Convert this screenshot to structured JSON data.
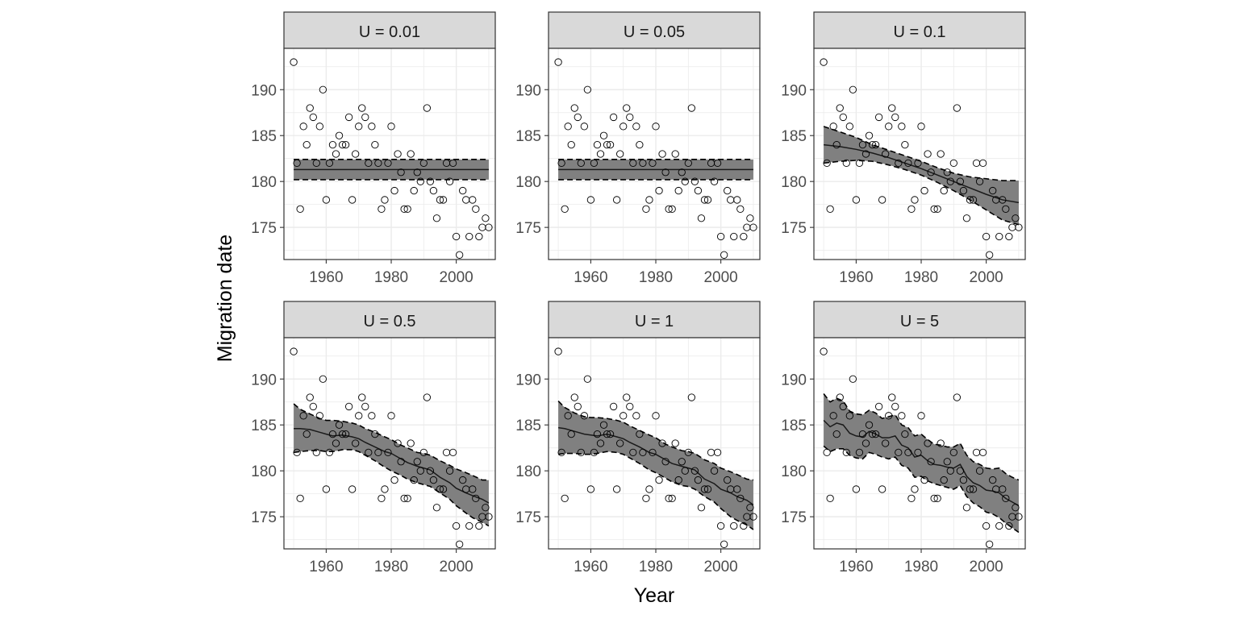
{
  "chart_data": {
    "type": "scatter",
    "xlabel": "Year",
    "ylabel": "Migration date",
    "xlim": [
      1947,
      2012
    ],
    "ylim": [
      171.5,
      194.5
    ],
    "x_ticks": [
      1960,
      1980,
      2000
    ],
    "y_ticks": [
      175,
      180,
      185,
      190
    ],
    "grid": true,
    "colors": {
      "points": "#000000",
      "band": "#808080",
      "strip_fill": "#d9d9d9",
      "grid": "#ebebeb",
      "border": "#333333"
    },
    "observations": {
      "x": [
        1950,
        1951,
        1952,
        1953,
        1954,
        1955,
        1956,
        1957,
        1958,
        1959,
        1960,
        1961,
        1962,
        1963,
        1964,
        1965,
        1966,
        1967,
        1968,
        1969,
        1970,
        1971,
        1972,
        1973,
        1974,
        1975,
        1976,
        1977,
        1978,
        1979,
        1980,
        1981,
        1982,
        1983,
        1984,
        1985,
        1986,
        1987,
        1988,
        1989,
        1990,
        1991,
        1992,
        1993,
        1994,
        1995,
        1996,
        1997,
        1998,
        1999,
        2000,
        2001,
        2002,
        2003,
        2004,
        2005,
        2006,
        2007,
        2008,
        2009,
        2010
      ],
      "y": [
        193,
        182,
        177,
        186,
        184,
        188,
        187,
        182,
        186,
        190,
        178,
        182,
        184,
        183,
        185,
        184,
        184,
        187,
        178,
        183,
        186,
        188,
        187,
        182,
        186,
        184,
        182,
        177,
        178,
        182,
        186,
        179,
        183,
        181,
        177,
        177,
        183,
        179,
        181,
        180,
        182,
        188,
        180,
        179,
        176,
        178,
        178,
        182,
        180,
        182,
        174,
        172,
        179,
        178,
        174,
        178,
        177,
        174,
        175,
        176,
        175
      ]
    },
    "panels": [
      {
        "label": "U = 0.01",
        "fit_x": [
          1950,
          2010
        ],
        "fit_y": [
          181.3,
          181.3
        ],
        "lower_y": [
          180.2,
          180.2
        ],
        "upper_y": [
          182.4,
          182.4
        ]
      },
      {
        "label": "U = 0.05",
        "fit_x": [
          1950,
          2010
        ],
        "fit_y": [
          181.3,
          181.3
        ],
        "lower_y": [
          180.2,
          180.2
        ],
        "upper_y": [
          182.4,
          182.4
        ]
      },
      {
        "label": "U = 0.1",
        "fit_x": [
          1950,
          1955,
          1960,
          1965,
          1970,
          1975,
          1980,
          1985,
          1990,
          1995,
          2000,
          2005,
          2010
        ],
        "fit_y": [
          184.0,
          183.8,
          183.5,
          183.1,
          182.6,
          182.0,
          181.4,
          180.7,
          180.0,
          179.3,
          178.6,
          178.0,
          177.7
        ],
        "lower_y": [
          182.0,
          182.2,
          182.3,
          182.2,
          181.8,
          181.3,
          180.7,
          179.9,
          179.0,
          178.0,
          176.9,
          175.8,
          175.3
        ],
        "upper_y": [
          186.0,
          185.4,
          184.8,
          184.0,
          183.4,
          182.8,
          182.2,
          181.5,
          180.9,
          180.5,
          180.3,
          180.1,
          180.1
        ]
      },
      {
        "label": "U = 0.5",
        "fit_x": [
          1950,
          1952,
          1955,
          1958,
          1960,
          1962,
          1965,
          1968,
          1970,
          1972,
          1975,
          1978,
          1980,
          1983,
          1985,
          1988,
          1990,
          1992,
          1995,
          1998,
          2000,
          2003,
          2005,
          2008,
          2010
        ],
        "fit_y": [
          184.6,
          184.6,
          184.5,
          184.2,
          184.0,
          183.8,
          183.9,
          183.7,
          183.5,
          183.1,
          182.6,
          182.1,
          181.9,
          181.3,
          180.9,
          180.5,
          180.3,
          180.1,
          179.3,
          178.7,
          178.1,
          177.6,
          177.3,
          176.9,
          176.5
        ],
        "lower_y": [
          182.0,
          182.1,
          182.2,
          182.2,
          182.1,
          182.1,
          182.3,
          182.3,
          182.1,
          181.7,
          181.1,
          180.4,
          180.0,
          179.5,
          179.1,
          178.7,
          178.5,
          178.3,
          177.6,
          176.9,
          176.2,
          175.4,
          174.9,
          174.4,
          174.0
        ],
        "upper_y": [
          187.3,
          186.7,
          186.2,
          185.7,
          185.5,
          185.5,
          185.4,
          185.2,
          185.0,
          184.6,
          184.2,
          183.7,
          183.4,
          182.8,
          182.5,
          182.0,
          181.9,
          181.7,
          181.1,
          180.6,
          180.2,
          179.8,
          179.5,
          179.0,
          179.0
        ]
      },
      {
        "label": "U = 1",
        "fit_x": [
          1950,
          1952,
          1955,
          1958,
          1960,
          1962,
          1965,
          1968,
          1970,
          1972,
          1975,
          1978,
          1980,
          1983,
          1985,
          1988,
          1990,
          1992,
          1995,
          1998,
          2000,
          2003,
          2005,
          2008,
          2010
        ],
        "fit_y": [
          184.7,
          184.6,
          184.3,
          184.0,
          183.9,
          183.8,
          184.0,
          183.7,
          183.5,
          183.1,
          182.6,
          182.0,
          181.8,
          181.2,
          180.8,
          180.5,
          180.3,
          180.1,
          179.1,
          178.6,
          178.0,
          177.6,
          177.2,
          176.8,
          176.3
        ],
        "lower_y": [
          181.8,
          181.9,
          181.9,
          181.8,
          181.8,
          181.9,
          182.1,
          182.0,
          181.8,
          181.4,
          180.8,
          180.1,
          179.8,
          179.2,
          178.8,
          178.4,
          178.3,
          178.0,
          177.2,
          176.6,
          175.9,
          175.0,
          174.6,
          174.1,
          173.6
        ],
        "upper_y": [
          187.6,
          186.9,
          186.3,
          185.9,
          185.8,
          185.8,
          185.7,
          185.5,
          185.3,
          184.9,
          184.4,
          183.9,
          183.6,
          182.9,
          182.6,
          182.2,
          182.1,
          181.9,
          181.2,
          180.8,
          180.3,
          179.9,
          179.6,
          179.1,
          179.0
        ]
      },
      {
        "label": "U = 5",
        "fit_x": [
          1950,
          1952,
          1954,
          1956,
          1958,
          1960,
          1962,
          1964,
          1966,
          1968,
          1970,
          1972,
          1974,
          1976,
          1978,
          1980,
          1982,
          1984,
          1986,
          1988,
          1990,
          1992,
          1994,
          1996,
          1998,
          2000,
          2002,
          2004,
          2006,
          2008,
          2010
        ],
        "fit_y": [
          185.5,
          184.8,
          185.2,
          185.0,
          184.1,
          183.8,
          183.7,
          184.3,
          184.0,
          183.6,
          183.6,
          183.8,
          182.8,
          182.5,
          181.5,
          181.7,
          181.1,
          180.7,
          180.6,
          180.4,
          180.3,
          180.7,
          179.4,
          178.7,
          178.4,
          177.9,
          177.8,
          177.6,
          177.0,
          176.6,
          176.2
        ],
        "lower_y": [
          182.7,
          182.1,
          182.4,
          182.4,
          181.7,
          181.4,
          181.3,
          182.0,
          181.8,
          181.5,
          181.3,
          181.5,
          180.6,
          180.3,
          179.3,
          179.4,
          178.9,
          178.6,
          178.4,
          178.2,
          178.0,
          178.4,
          177.2,
          176.5,
          176.1,
          175.5,
          175.3,
          174.9,
          174.3,
          173.8,
          173.3
        ],
        "upper_y": [
          188.4,
          187.5,
          187.9,
          187.6,
          186.5,
          186.2,
          186.1,
          186.6,
          186.3,
          185.7,
          185.9,
          186.1,
          185.0,
          184.7,
          183.8,
          184.0,
          183.4,
          182.9,
          182.8,
          182.6,
          182.6,
          183.0,
          181.7,
          181.0,
          180.7,
          180.3,
          180.2,
          180.3,
          179.7,
          179.3,
          179.0
        ]
      }
    ]
  }
}
